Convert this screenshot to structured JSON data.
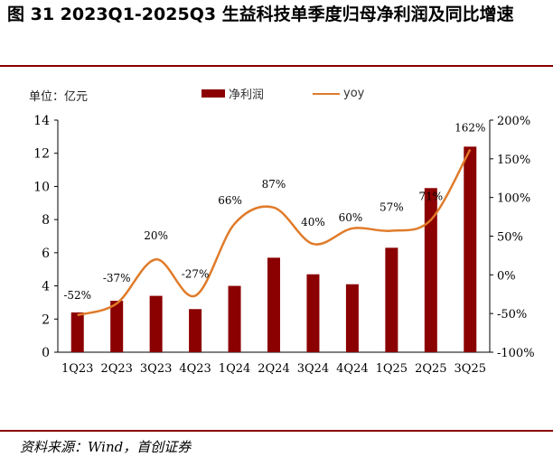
{
  "figure": {
    "title": "图  31 2023Q1-2025Q3 生益科技单季度归母净利润及同比增速",
    "unit_label": "单位：亿元",
    "source": "资料来源：Wind，首创证券"
  },
  "colors": {
    "bar": "#8b0000",
    "line": "#e07b2a",
    "axis": "#000000"
  },
  "chart_data": {
    "type": "bar",
    "title": "",
    "categories": [
      "1Q23",
      "2Q23",
      "3Q23",
      "4Q23",
      "1Q24",
      "2Q24",
      "3Q24",
      "4Q24",
      "1Q25",
      "2Q25",
      "3Q25"
    ],
    "series": [
      {
        "name": "净利润",
        "type": "bar",
        "axis": "left",
        "values": [
          2.4,
          3.1,
          3.4,
          2.6,
          4.0,
          5.7,
          4.7,
          4.1,
          6.3,
          9.9,
          12.4
        ]
      },
      {
        "name": "yoy",
        "type": "line",
        "axis": "right",
        "values": [
          -52,
          -37,
          20,
          -27,
          66,
          87,
          40,
          60,
          57,
          71,
          162
        ],
        "labels": [
          "-52%",
          "-37%",
          "20%",
          "-27%",
          "66%",
          "87%",
          "40%",
          "60%",
          "57%",
          "71%",
          "162%"
        ]
      }
    ],
    "ylim_left": [
      0,
      14
    ],
    "yticks_left": [
      "0",
      "2",
      "4",
      "6",
      "8",
      "10",
      "12",
      "14"
    ],
    "ylim_right": [
      -100,
      200
    ],
    "yticks_right": [
      "-100%",
      "-50%",
      "0%",
      "50%",
      "100%",
      "150%",
      "200%"
    ],
    "legend_position": "top-center"
  }
}
